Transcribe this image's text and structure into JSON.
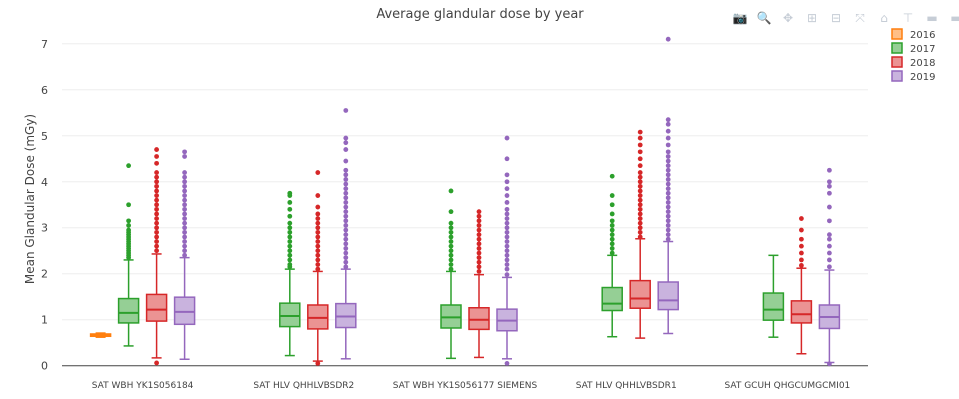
{
  "toolbar": {
    "buttons": [
      {
        "name": "camera-icon",
        "glyph": "📷"
      },
      {
        "name": "zoom-icon",
        "glyph": "🔍"
      },
      {
        "name": "pan-icon",
        "glyph": "✥"
      },
      {
        "name": "zoom-in-icon",
        "glyph": "⊞"
      },
      {
        "name": "zoom-out-icon",
        "glyph": "⊟"
      },
      {
        "name": "autoscale-icon",
        "glyph": "⤧"
      },
      {
        "name": "home-icon",
        "glyph": "⌂"
      },
      {
        "name": "spike-lines-icon",
        "glyph": "⊤"
      },
      {
        "name": "hover-closest-icon",
        "glyph": "▬"
      },
      {
        "name": "hover-compare-icon",
        "glyph": "▬"
      },
      {
        "name": "plotly-logo-icon",
        "glyph": "▥"
      }
    ]
  },
  "chart_data": {
    "type": "box",
    "title": "Average glandular dose by year",
    "xlabel": "",
    "ylabel": "Mean Glandular Dose (mGy)",
    "ylim": [
      -0.05,
      7.3
    ],
    "yticks": [
      0,
      1,
      2,
      3,
      4,
      5,
      6,
      7
    ],
    "grid": true,
    "legend_position": "top-right",
    "categories": [
      "SAT WBH YK1S056184",
      "SAT HLV QHHLVBSDR2",
      "SAT WBH YK1S056177 SIEMENS",
      "SAT HLV QHHLVBSDR1",
      "SAT GCUH QHGCUMGCMI01"
    ],
    "series": [
      {
        "name": "2016",
        "color": "#ff7f0e",
        "fill": "#ffbf87",
        "boxes": [
          {
            "category": 0,
            "min": 0.62,
            "q1": 0.64,
            "median": 0.66,
            "q3": 0.69,
            "max": 0.71,
            "outliers": []
          },
          null,
          null,
          null,
          null
        ]
      },
      {
        "name": "2017",
        "color": "#2ca02c",
        "fill": "#95cf95",
        "boxes": [
          {
            "category": 0,
            "min": 0.43,
            "q1": 0.93,
            "median": 1.15,
            "q3": 1.46,
            "max": 2.3,
            "outliers": [
              2.35,
              2.4,
              2.45,
              2.5,
              2.55,
              2.6,
              2.65,
              2.7,
              2.75,
              2.8,
              2.85,
              2.9,
              2.95,
              3.05,
              3.15,
              3.5,
              4.35
            ]
          },
          {
            "category": 1,
            "min": 0.22,
            "q1": 0.85,
            "median": 1.08,
            "q3": 1.36,
            "max": 2.1,
            "outliers": [
              2.15,
              2.2,
              2.3,
              2.4,
              2.5,
              2.6,
              2.7,
              2.8,
              2.9,
              3.0,
              3.1,
              3.25,
              3.4,
              3.55,
              3.7,
              3.75
            ]
          },
          {
            "category": 2,
            "min": 0.16,
            "q1": 0.82,
            "median": 1.05,
            "q3": 1.32,
            "max": 2.05,
            "outliers": [
              2.1,
              2.2,
              2.3,
              2.4,
              2.5,
              2.6,
              2.7,
              2.8,
              2.9,
              3.0,
              3.1,
              3.35,
              3.8
            ]
          },
          {
            "category": 3,
            "min": 0.63,
            "q1": 1.2,
            "median": 1.35,
            "q3": 1.7,
            "max": 2.4,
            "outliers": [
              2.45,
              2.55,
              2.65,
              2.75,
              2.85,
              2.95,
              3.05,
              3.15,
              3.3,
              3.5,
              3.7,
              4.12
            ]
          },
          {
            "category": 4,
            "min": 0.62,
            "q1": 0.99,
            "median": 1.22,
            "q3": 1.58,
            "max": 2.4,
            "outliers": []
          }
        ]
      },
      {
        "name": "2018",
        "color": "#d62728",
        "fill": "#eb9393",
        "boxes": [
          {
            "category": 0,
            "min": 0.17,
            "q1": 0.97,
            "median": 1.22,
            "q3": 1.55,
            "max": 2.43,
            "outliers": [
              0.06,
              2.5,
              2.6,
              2.7,
              2.8,
              2.9,
              3.0,
              3.1,
              3.2,
              3.3,
              3.4,
              3.5,
              3.6,
              3.7,
              3.8,
              3.9,
              4.0,
              4.1,
              4.2,
              4.4,
              4.55,
              4.7
            ]
          },
          {
            "category": 1,
            "min": 0.1,
            "q1": 0.8,
            "median": 1.04,
            "q3": 1.32,
            "max": 2.05,
            "outliers": [
              0.05,
              2.1,
              2.2,
              2.3,
              2.4,
              2.5,
              2.6,
              2.7,
              2.8,
              2.9,
              3.0,
              3.1,
              3.2,
              3.3,
              3.45,
              3.7,
              4.2
            ]
          },
          {
            "category": 2,
            "min": 0.18,
            "q1": 0.79,
            "median": 1.0,
            "q3": 1.26,
            "max": 1.98,
            "outliers": [
              2.05,
              2.15,
              2.25,
              2.35,
              2.45,
              2.55,
              2.65,
              2.75,
              2.85,
              2.95,
              3.05,
              3.15,
              3.25,
              3.35
            ]
          },
          {
            "category": 3,
            "min": 0.6,
            "q1": 1.25,
            "median": 1.46,
            "q3": 1.85,
            "max": 2.76,
            "outliers": [
              2.8,
              2.9,
              3.0,
              3.1,
              3.2,
              3.3,
              3.4,
              3.5,
              3.6,
              3.7,
              3.8,
              3.9,
              4.0,
              4.1,
              4.2,
              4.35,
              4.5,
              4.65,
              4.8,
              4.95,
              5.08
            ]
          },
          {
            "category": 4,
            "min": 0.26,
            "q1": 0.93,
            "median": 1.12,
            "q3": 1.41,
            "max": 2.12,
            "outliers": [
              2.18,
              2.3,
              2.45,
              2.6,
              2.75,
              2.95,
              3.2
            ]
          }
        ]
      },
      {
        "name": "2019",
        "color": "#9467bd",
        "fill": "#c9b3de",
        "boxes": [
          {
            "category": 0,
            "min": 0.14,
            "q1": 0.9,
            "median": 1.17,
            "q3": 1.49,
            "max": 2.35,
            "outliers": [
              2.4,
              2.5,
              2.6,
              2.7,
              2.8,
              2.9,
              3.0,
              3.1,
              3.2,
              3.3,
              3.4,
              3.5,
              3.6,
              3.7,
              3.8,
              3.9,
              4.0,
              4.1,
              4.2,
              4.55,
              4.65
            ]
          },
          {
            "category": 1,
            "min": 0.15,
            "q1": 0.83,
            "median": 1.07,
            "q3": 1.35,
            "max": 2.1,
            "outliers": [
              2.15,
              2.25,
              2.35,
              2.45,
              2.55,
              2.65,
              2.75,
              2.85,
              2.95,
              3.05,
              3.15,
              3.25,
              3.35,
              3.45,
              3.55,
              3.65,
              3.75,
              3.85,
              3.95,
              4.05,
              4.15,
              4.25,
              4.45,
              4.7,
              4.85,
              4.95,
              5.55
            ]
          },
          {
            "category": 2,
            "min": 0.15,
            "q1": 0.76,
            "median": 0.98,
            "q3": 1.23,
            "max": 1.92,
            "outliers": [
              0.05,
              1.98,
              2.1,
              2.2,
              2.3,
              2.4,
              2.5,
              2.6,
              2.7,
              2.8,
              2.9,
              3.0,
              3.1,
              3.2,
              3.3,
              3.4,
              3.55,
              3.7,
              3.85,
              4.0,
              4.15,
              4.5,
              4.95
            ]
          },
          {
            "category": 3,
            "min": 0.7,
            "q1": 1.22,
            "median": 1.42,
            "q3": 1.82,
            "max": 2.7,
            "outliers": [
              2.75,
              2.85,
              2.95,
              3.05,
              3.15,
              3.25,
              3.35,
              3.45,
              3.55,
              3.65,
              3.75,
              3.85,
              3.95,
              4.05,
              4.15,
              4.25,
              4.35,
              4.45,
              4.55,
              4.65,
              4.8,
              4.95,
              5.1,
              5.25,
              5.35,
              7.1
            ]
          },
          {
            "category": 4,
            "min": 0.07,
            "q1": 0.81,
            "median": 1.06,
            "q3": 1.32,
            "max": 2.08,
            "outliers": [
              0.04,
              2.15,
              2.3,
              2.45,
              2.6,
              2.75,
              2.85,
              3.15,
              3.45,
              3.75,
              3.9,
              4.0,
              4.25
            ]
          }
        ]
      }
    ]
  }
}
